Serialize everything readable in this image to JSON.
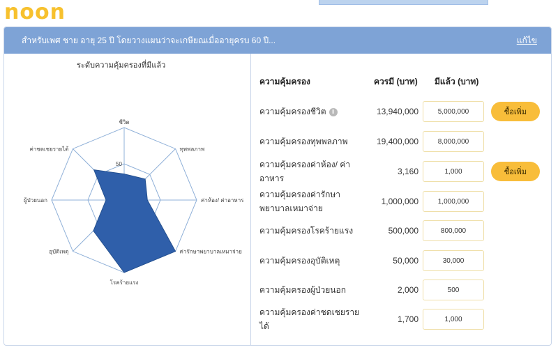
{
  "brand": {
    "logo_text": "noon"
  },
  "header": {
    "summary": "สำหรับเพศ ชาย อายุ 25 ปี โดยวางแผนว่าจะเกษียณเมื่ออายุครบ 60 ปี...",
    "edit_label": "แก้ไข"
  },
  "chart_title": "ระดับความคุ้มครองที่มีแล้ว",
  "table": {
    "headers": {
      "coverage": "ความคุ้มครอง",
      "should_have": "ควรมี (บาท)",
      "have": "มีแล้ว (บาท)"
    },
    "rows": [
      {
        "label": "ความคุ้มครองชีวิต",
        "should": "13,940,000",
        "have": "5,000,000",
        "buy": "ซื้อเพิ่ม",
        "info": true
      },
      {
        "label": "ความคุ้มครองทุพพลภาพ",
        "should": "19,400,000",
        "have": "8,000,000"
      },
      {
        "label": "ความคุ้มครองค่าห้อง/ ค่าอาหาร",
        "should": "3,160",
        "have": "1,000",
        "buy": "ซื้อเพิ่ม"
      },
      {
        "label": "ความคุ้มครองค่ารักษาพยาบาลเหมาจ่าย",
        "should": "1,000,000",
        "have": "1,000,000"
      },
      {
        "label": "ความคุ้มครองโรคร้ายแรง",
        "should": "500,000",
        "have": "800,000"
      },
      {
        "label": "ความคุ้มครองอุบัติเหตุ",
        "should": "50,000",
        "have": "30,000"
      },
      {
        "label": "ความคุ้มครองผู้ป่วยนอก",
        "should": "2,000",
        "have": "500"
      },
      {
        "label": "ความคุ้มครองค่าชดเชยรายได้",
        "should": "1,700",
        "have": "1,000"
      }
    ]
  },
  "colors": {
    "brand": "#f7c12e",
    "header": "#7ea3d6",
    "button": "#f8bd3a",
    "radar_fill": "#2f5faa"
  },
  "chart_data": {
    "type": "radar",
    "axes": [
      "ชีวิต",
      "ทุพพลภาพ",
      "ค่าห้อง/ ค่าอาหาร",
      "ค่ารักษาพยาบาลเหมาจ่าย",
      "โรคร้ายแรง",
      "อุบัติเหตุ",
      "ผู้ป่วยนอก",
      "ค่าชดเชยรายได้"
    ],
    "values": [
      36,
      41,
      32,
      100,
      100,
      60,
      25,
      59
    ],
    "ticks": [
      "50"
    ],
    "range": [
      0,
      100
    ]
  }
}
